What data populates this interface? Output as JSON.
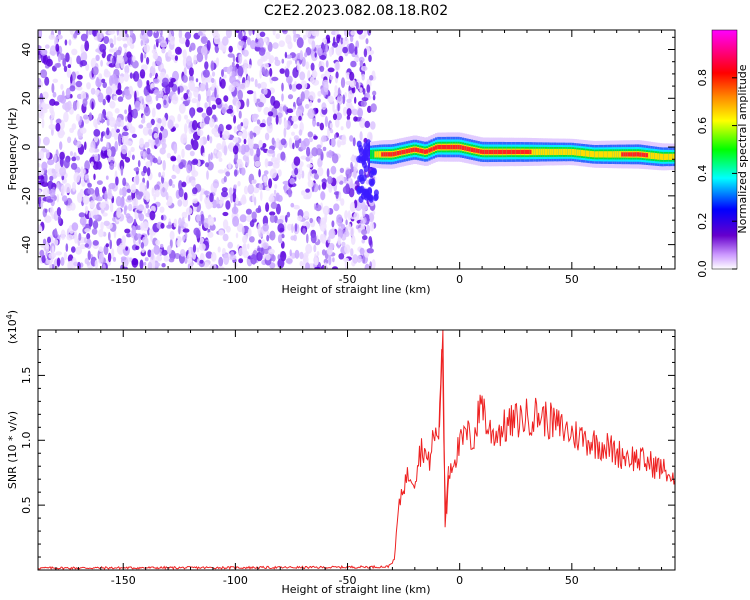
{
  "title": "C2E2.2023.082.08.18.R02",
  "chart_data": [
    {
      "type": "heatmap",
      "xlabel": "Height of straight line (km)",
      "ylabel": "Frequency (Hz)",
      "xlim": [
        -188,
        96
      ],
      "ylim": [
        -50,
        48
      ],
      "x_ticks": [
        -150,
        -100,
        -50,
        0,
        50
      ],
      "y_ticks": [
        -40,
        -20,
        0,
        20,
        40
      ],
      "colorbar": {
        "label": "Normalized spectral amplitude",
        "range": [
          0,
          1
        ],
        "ticks": [
          0.0,
          0.2,
          0.4,
          0.6,
          0.8
        ],
        "colors": [
          "#ffffff",
          "#cc99ff",
          "#6600cc",
          "#0000ff",
          "#00ffff",
          "#00ff00",
          "#ffff00",
          "#ff8800",
          "#ff0000",
          "#ff00ff"
        ]
      },
      "noise_region_x": [
        -188,
        -38
      ],
      "signal_ridge": {
        "x": [
          -40,
          -35,
          -30,
          -25,
          -20,
          -15,
          -10,
          -5,
          0,
          10,
          20,
          30,
          40,
          50,
          60,
          70,
          80,
          90,
          96
        ],
        "y": [
          -3,
          -3,
          -3,
          -2,
          -1,
          -2,
          0,
          0,
          0,
          -2,
          -2,
          -2,
          -2,
          -2,
          -3,
          -3,
          -3,
          -4,
          -4
        ],
        "amplitude": [
          0.4,
          0.85,
          0.95,
          0.9,
          0.9,
          0.9,
          0.95,
          1.0,
          1.0,
          0.95,
          0.9,
          0.85,
          0.7,
          0.6,
          0.65,
          0.8,
          0.9,
          0.7,
          0.6
        ]
      },
      "colors": {
        "grid": "#000000"
      }
    },
    {
      "type": "line",
      "xlabel": "Height of straight line (km)",
      "ylabel": "SNR (10 * v/v)",
      "y_multiplier": "(x10",
      "y_multiplier_exp": "4",
      "y_multiplier_close": ")",
      "xlim": [
        -188,
        96
      ],
      "ylim": [
        0,
        18500
      ],
      "x_ticks": [
        -150,
        -100,
        -50,
        0,
        50
      ],
      "y_ticks": [
        5000,
        10000,
        15000
      ],
      "y_tick_labels": [
        "0.5",
        "1.0",
        "1.5"
      ],
      "series": [
        {
          "color": "#ee2222",
          "x": [
            -188,
            -60,
            -32,
            -29,
            -28,
            -26,
            -24,
            -22,
            -20,
            -18,
            -16,
            -14,
            -12,
            -10,
            -9,
            -8,
            -7,
            -6,
            -5,
            -3,
            0,
            3,
            6,
            8,
            10,
            12,
            15,
            20,
            25,
            30,
            35,
            40,
            45,
            50,
            55,
            60,
            65,
            70,
            75,
            80,
            85,
            90,
            93,
            95
          ],
          "y": [
            150,
            200,
            250,
            800,
            3500,
            6000,
            7000,
            7500,
            7000,
            9000,
            9500,
            8000,
            10000,
            10500,
            11000,
            18500,
            9000,
            3500,
            7500,
            8500,
            9500,
            10500,
            10000,
            11500,
            13500,
            11000,
            10500,
            11000,
            11500,
            11800,
            12000,
            11500,
            11000,
            10500,
            10200,
            9800,
            9600,
            9000,
            8800,
            8500,
            8200,
            7800,
            7500,
            6800
          ]
        }
      ]
    }
  ]
}
